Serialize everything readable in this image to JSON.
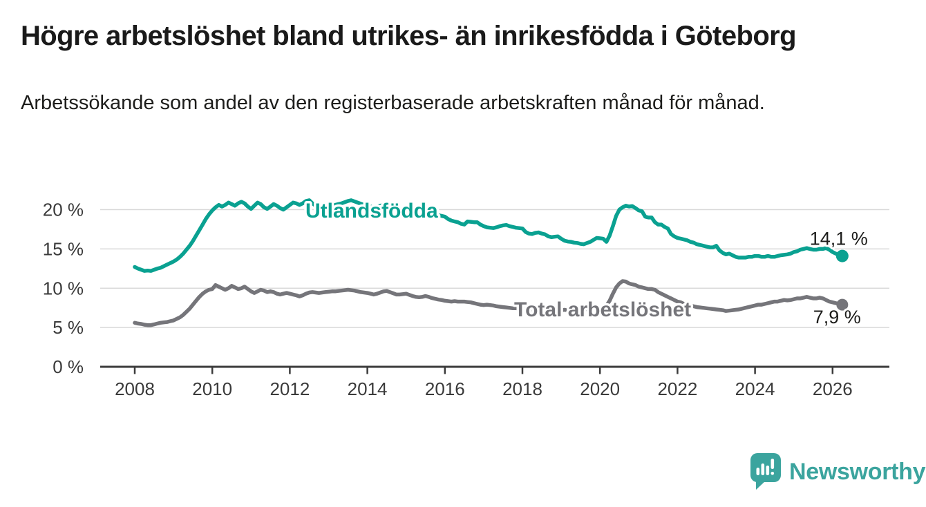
{
  "title": "Högre arbetslöshet bland utrikes- än inrikesfödda i Göteborg",
  "subtitle": "Arbetssökande som andel av den registerbaserade arbetskraften månad för månad.",
  "branding": {
    "logo_text": "Newsworthy",
    "logo_color": "#3ba49e"
  },
  "colors": {
    "foreign_born_line": "#0aa191",
    "total_line": "#75757a",
    "grid": "#d9d9d9",
    "axis": "#3b3b3b",
    "text": "#1d1d1b",
    "axis_text": "#3a3a3a",
    "background": "#ffffff"
  },
  "chart_data": {
    "type": "line",
    "title": "Högre arbetslöshet bland utrikes- än inrikesfödda i Göteborg",
    "subtitle": "Arbetssökande som andel av den registerbaserade arbetskraften månad för månad.",
    "grid": "horizontal",
    "legend_position": "inline-labels",
    "x_axis": {
      "ticks": [
        2008,
        2010,
        2012,
        2014,
        2016,
        2018,
        2020,
        2022,
        2024,
        2026
      ],
      "range": [
        2007.1,
        2027.45
      ]
    },
    "y_axis": {
      "unit": "%",
      "ticks": [
        0,
        5,
        10,
        15,
        20
      ],
      "tick_labels": [
        "0 %",
        "5 %",
        "10 %",
        "15 %",
        "20 %"
      ],
      "range": [
        0,
        22.5
      ]
    },
    "series": [
      {
        "name": "Utlandsfödda",
        "color": "#0aa191",
        "end_label": "14,1 %",
        "end_value": 14.1,
        "start_year": 2008,
        "interval_months": 1,
        "values": [
          12.7,
          12.5,
          12.35,
          12.2,
          12.25,
          12.2,
          12.35,
          12.5,
          12.6,
          12.8,
          13.0,
          13.2,
          13.4,
          13.65,
          14.0,
          14.4,
          14.9,
          15.4,
          16.0,
          16.7,
          17.4,
          18.1,
          18.8,
          19.4,
          19.9,
          20.3,
          20.6,
          20.4,
          20.6,
          20.9,
          20.7,
          20.5,
          20.8,
          21.0,
          20.8,
          20.4,
          20.1,
          20.5,
          20.9,
          20.7,
          20.3,
          20.1,
          20.4,
          20.7,
          20.5,
          20.2,
          20.0,
          20.3,
          20.6,
          20.9,
          20.8,
          20.6,
          20.8,
          21.1,
          21.2,
          20.8,
          20.5,
          20.3,
          20.4,
          20.5,
          20.5,
          20.55,
          20.6,
          20.7,
          20.8,
          20.95,
          21.1,
          21.2,
          21.05,
          20.9,
          20.75,
          20.6,
          20.5,
          20.4,
          20.3,
          20.4,
          20.5,
          20.6,
          20.5,
          20.3,
          20.2,
          20.1,
          20.0,
          20.0,
          19.9,
          19.85,
          19.8,
          19.8,
          19.75,
          19.7,
          19.6,
          19.5,
          19.45,
          19.4,
          19.3,
          19.2,
          19.1,
          18.8,
          18.6,
          18.5,
          18.4,
          18.2,
          18.1,
          18.5,
          18.45,
          18.4,
          18.4,
          18.1,
          17.9,
          17.75,
          17.7,
          17.65,
          17.75,
          17.9,
          18.0,
          18.05,
          17.9,
          17.8,
          17.7,
          17.65,
          17.6,
          17.15,
          16.95,
          16.9,
          17.05,
          17.1,
          16.95,
          16.85,
          16.6,
          16.5,
          16.55,
          16.6,
          16.3,
          16.05,
          15.95,
          15.9,
          15.8,
          15.75,
          15.65,
          15.6,
          15.75,
          15.9,
          16.15,
          16.4,
          16.35,
          16.3,
          15.9,
          16.7,
          17.9,
          19.2,
          20.0,
          20.3,
          20.5,
          20.4,
          20.45,
          20.2,
          19.9,
          19.8,
          19.1,
          19.0,
          19.0,
          18.4,
          18.1,
          18.1,
          17.8,
          17.6,
          16.9,
          16.6,
          16.4,
          16.3,
          16.2,
          16.1,
          15.9,
          15.8,
          15.6,
          15.5,
          15.4,
          15.3,
          15.2,
          15.2,
          15.4,
          14.8,
          14.5,
          14.3,
          14.4,
          14.2,
          14.0,
          13.9,
          13.9,
          13.9,
          14.0,
          14.0,
          14.1,
          14.1,
          14.0,
          14.0,
          14.1,
          14.0,
          14.0,
          14.1,
          14.2,
          14.25,
          14.3,
          14.4,
          14.6,
          14.7,
          14.9,
          15.0,
          15.1,
          15.0,
          14.9,
          14.9,
          15.0,
          15.0,
          15.1,
          14.9,
          14.6,
          14.4,
          14.2,
          14.1
        ]
      },
      {
        "name": "Total arbetslöshet",
        "color": "#75757a",
        "end_label": "7,9 %",
        "end_value": 7.9,
        "start_year": 2008,
        "interval_months": 1,
        "values": [
          5.6,
          5.5,
          5.45,
          5.35,
          5.3,
          5.3,
          5.4,
          5.5,
          5.6,
          5.65,
          5.7,
          5.8,
          5.9,
          6.1,
          6.3,
          6.6,
          7.0,
          7.4,
          7.9,
          8.4,
          8.9,
          9.3,
          9.6,
          9.8,
          9.9,
          10.4,
          10.2,
          10.0,
          9.8,
          10.0,
          10.3,
          10.1,
          9.9,
          10.0,
          10.2,
          9.9,
          9.6,
          9.4,
          9.6,
          9.8,
          9.7,
          9.5,
          9.6,
          9.5,
          9.3,
          9.2,
          9.3,
          9.4,
          9.3,
          9.2,
          9.1,
          8.95,
          9.1,
          9.3,
          9.45,
          9.5,
          9.45,
          9.4,
          9.45,
          9.5,
          9.55,
          9.6,
          9.6,
          9.65,
          9.7,
          9.75,
          9.8,
          9.75,
          9.7,
          9.6,
          9.5,
          9.45,
          9.4,
          9.3,
          9.2,
          9.3,
          9.45,
          9.6,
          9.65,
          9.5,
          9.35,
          9.2,
          9.2,
          9.25,
          9.3,
          9.15,
          9.0,
          8.9,
          8.85,
          8.9,
          9.0,
          8.9,
          8.75,
          8.65,
          8.55,
          8.5,
          8.4,
          8.35,
          8.3,
          8.35,
          8.3,
          8.3,
          8.3,
          8.25,
          8.2,
          8.1,
          8.0,
          7.9,
          7.85,
          7.9,
          7.85,
          7.8,
          7.7,
          7.65,
          7.6,
          7.55,
          7.5,
          7.45,
          7.45,
          7.4,
          7.4,
          7.35,
          7.3,
          7.3,
          7.35,
          7.3,
          7.3,
          7.25,
          7.2,
          7.2,
          7.2,
          7.2,
          7.2,
          7.25,
          7.2,
          7.2,
          7.25,
          7.25,
          7.3,
          7.3,
          7.35,
          7.4,
          7.45,
          7.5,
          7.5,
          7.6,
          7.8,
          8.4,
          9.3,
          10.1,
          10.6,
          10.9,
          10.85,
          10.6,
          10.5,
          10.4,
          10.2,
          10.1,
          10.0,
          9.9,
          9.9,
          9.8,
          9.5,
          9.3,
          9.1,
          8.9,
          8.7,
          8.5,
          8.3,
          8.2,
          8.0,
          7.9,
          7.8,
          7.7,
          7.6,
          7.55,
          7.5,
          7.45,
          7.4,
          7.35,
          7.3,
          7.25,
          7.2,
          7.1,
          7.15,
          7.2,
          7.25,
          7.3,
          7.4,
          7.5,
          7.6,
          7.7,
          7.8,
          7.9,
          7.9,
          8.0,
          8.1,
          8.2,
          8.3,
          8.3,
          8.4,
          8.5,
          8.45,
          8.5,
          8.6,
          8.7,
          8.7,
          8.8,
          8.9,
          8.8,
          8.7,
          8.7,
          8.8,
          8.7,
          8.5,
          8.3,
          8.2,
          8.1,
          8.0,
          7.9
        ]
      }
    ]
  }
}
